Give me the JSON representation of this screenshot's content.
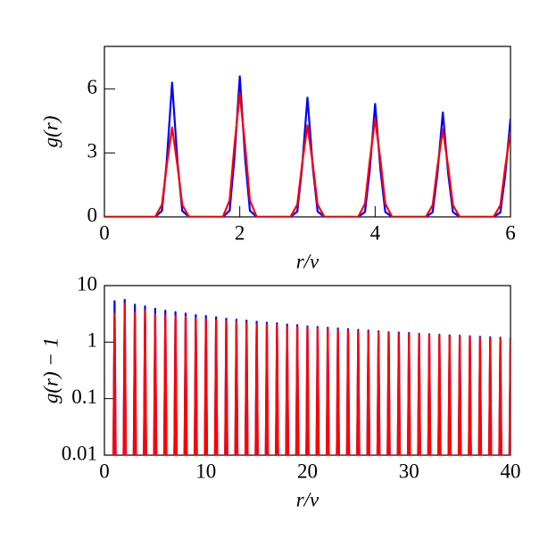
{
  "chart_data": [
    {
      "type": "line",
      "x_label": "r/v",
      "y_label": "g(r)",
      "x": [
        0,
        0.75,
        0.85,
        0.92,
        1,
        1.08,
        1.15,
        1.25,
        1.75,
        1.85,
        1.92,
        2,
        2.08,
        2.15,
        2.25,
        2.75,
        2.85,
        2.92,
        3,
        3.08,
        3.15,
        3.25,
        3.75,
        3.85,
        3.92,
        4,
        4.08,
        4.15,
        4.25,
        4.75,
        4.85,
        4.92,
        5,
        5.08,
        5.15,
        5.25,
        5.75,
        5.85,
        5.92,
        6
      ],
      "series": [
        {
          "color": "#0000ff",
          "values": [
            0,
            0,
            0.28,
            2.58,
            6.3,
            2.58,
            0.28,
            0,
            0,
            0.29,
            2.71,
            6.6,
            2.71,
            0.29,
            0,
            0,
            0.25,
            2.3,
            5.6,
            2.3,
            0.25,
            0,
            0,
            0.23,
            2.17,
            5.3,
            2.17,
            0.23,
            0,
            0,
            0.22,
            2.01,
            4.9,
            2.01,
            0.22,
            0,
            0,
            0.2,
            1.89,
            4.6
          ]
        },
        {
          "color": "#ff0000",
          "values": [
            0,
            0,
            0.57,
            2.39,
            4.2,
            2.39,
            0.57,
            0,
            0,
            0.78,
            3.31,
            5.8,
            3.31,
            0.78,
            0,
            0,
            0.58,
            2.45,
            4.3,
            2.45,
            0.58,
            0,
            0,
            0.62,
            2.62,
            4.6,
            2.62,
            0.62,
            0,
            0,
            0.55,
            2.34,
            4.1,
            2.34,
            0.55,
            0,
            0,
            0.54,
            2.28,
            4.0
          ]
        }
      ],
      "xlim": [
        0,
        6
      ],
      "xticks": [
        0,
        2,
        4,
        6
      ],
      "ylim": [
        0,
        8
      ],
      "yticks": [
        0,
        3,
        6
      ],
      "log_y": false
    },
    {
      "type": "line",
      "x_label": "r/v",
      "y_label": "g(r) − 1",
      "x": [
        0.85,
        1,
        1.15,
        1.85,
        2,
        2.15,
        2.85,
        3,
        3.15,
        3.85,
        4,
        4.15,
        4.85,
        5,
        5.15,
        5.85,
        6,
        6.15,
        6.85,
        7,
        7.15,
        7.85,
        8,
        8.15,
        8.85,
        9,
        9.15,
        9.85,
        10,
        10.15,
        10.85,
        11,
        11.15,
        11.85,
        12,
        12.15,
        12.85,
        13,
        13.15,
        13.85,
        14,
        14.15,
        14.85,
        15,
        15.15,
        15.85,
        16,
        16.15,
        16.85,
        17,
        17.15,
        17.85,
        18,
        18.15,
        18.85,
        19,
        19.15,
        19.85,
        20,
        20.15,
        20.85,
        21,
        21.15,
        21.85,
        22,
        22.15,
        22.85,
        23,
        23.15,
        23.85,
        24,
        24.15,
        24.85,
        25,
        25.15,
        25.85,
        26,
        26.15,
        26.85,
        27,
        27.15,
        27.85,
        28,
        28.15,
        28.85,
        29,
        29.15,
        29.85,
        30,
        30.15,
        30.85,
        31,
        31.15,
        31.85,
        32,
        32.15,
        32.85,
        33,
        33.15,
        33.85,
        34,
        34.15,
        34.85,
        35,
        35.15,
        35.85,
        36,
        36.15,
        36.85,
        37,
        37.15,
        37.85,
        38,
        38.15,
        38.85,
        39,
        39.15,
        39.85,
        40
      ],
      "series": [
        {
          "color": "#0000ff",
          "values": [
            0.001,
            5.3,
            0.001,
            0.001,
            5.6,
            0.001,
            0.001,
            4.6,
            0.001,
            0.001,
            4.3,
            0.001,
            0.001,
            3.9,
            0.001,
            0.001,
            3.6,
            0.001,
            0.001,
            3.4,
            0.001,
            0.001,
            3.2,
            0.001,
            0.001,
            3.0,
            0.001,
            0.001,
            2.9,
            0.001,
            0.001,
            2.75,
            0.001,
            0.001,
            2.6,
            0.001,
            0.001,
            2.5,
            0.001,
            0.001,
            2.4,
            0.001,
            0.001,
            2.3,
            0.001,
            0.001,
            2.2,
            0.001,
            0.001,
            2.15,
            0.001,
            0.001,
            2.05,
            0.001,
            0.001,
            2.0,
            0.001,
            0.001,
            1.9,
            0.001,
            0.001,
            1.85,
            0.001,
            0.001,
            1.8,
            0.001,
            0.001,
            1.75,
            0.001,
            0.001,
            1.7,
            0.001,
            0.001,
            1.65,
            0.001,
            0.001,
            1.6,
            0.001,
            0.001,
            1.55,
            0.001,
            0.001,
            1.5,
            0.001,
            0.001,
            1.48,
            0.001,
            0.001,
            1.45,
            0.001,
            0.001,
            1.4,
            0.001,
            0.001,
            1.38,
            0.001,
            0.001,
            1.35,
            0.001,
            0.001,
            1.32,
            0.001,
            0.001,
            1.3,
            0.001,
            0.001,
            1.27,
            0.001,
            0.001,
            1.25,
            0.001,
            0.001,
            1.22,
            0.001,
            0.001,
            1.2,
            0.001,
            0.001,
            1.18
          ]
        },
        {
          "color": "#ff0000",
          "values": [
            0.001,
            3.2,
            0.001,
            0.001,
            4.8,
            0.001,
            0.001,
            3.3,
            0.001,
            0.001,
            3.6,
            0.001,
            0.001,
            3.1,
            0.001,
            0.001,
            3.0,
            0.001,
            0.001,
            2.9,
            0.001,
            0.001,
            2.8,
            0.001,
            0.001,
            2.65,
            0.001,
            0.001,
            2.55,
            0.001,
            0.001,
            2.45,
            0.001,
            0.001,
            2.35,
            0.001,
            0.001,
            2.3,
            0.001,
            0.001,
            2.2,
            0.001,
            0.001,
            2.1,
            0.001,
            0.001,
            2.05,
            0.001,
            0.001,
            2.0,
            0.001,
            0.001,
            1.9,
            0.001,
            0.001,
            1.85,
            0.001,
            0.001,
            1.8,
            0.001,
            0.001,
            1.75,
            0.001,
            0.001,
            1.7,
            0.001,
            0.001,
            1.65,
            0.001,
            0.001,
            1.6,
            0.001,
            0.001,
            1.55,
            0.001,
            0.001,
            1.52,
            0.001,
            0.001,
            1.48,
            0.001,
            0.001,
            1.45,
            0.001,
            0.001,
            1.42,
            0.001,
            0.001,
            1.38,
            0.001,
            0.001,
            1.35,
            0.001,
            0.001,
            1.32,
            0.001,
            0.001,
            1.3,
            0.001,
            0.001,
            1.27,
            0.001,
            0.001,
            1.25,
            0.001,
            0.001,
            1.22,
            0.001,
            0.001,
            1.2,
            0.001,
            0.001,
            1.18,
            0.001,
            0.001,
            1.15,
            0.001,
            0.001,
            1.12
          ]
        }
      ],
      "xlim": [
        0,
        40
      ],
      "xticks": [
        0,
        10,
        20,
        30,
        40
      ],
      "ylim": [
        0.01,
        10
      ],
      "yticks": [
        0.01,
        0.1,
        1,
        10
      ],
      "log_y": true
    }
  ]
}
